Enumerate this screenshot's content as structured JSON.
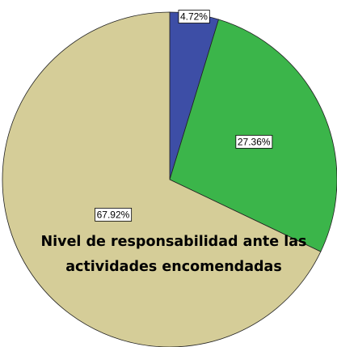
{
  "chart_data": {
    "type": "pie",
    "title": "Nivel de responsabilidad ante las actividades encomendadas",
    "categories": [
      null,
      null,
      null
    ],
    "values": [
      4.72,
      27.36,
      67.92
    ],
    "value_labels": [
      "4.72%",
      "27.36%",
      "67.92%"
    ],
    "colors": [
      "#3d4ea6",
      "#3bb54a",
      "#d5cd98"
    ]
  }
}
